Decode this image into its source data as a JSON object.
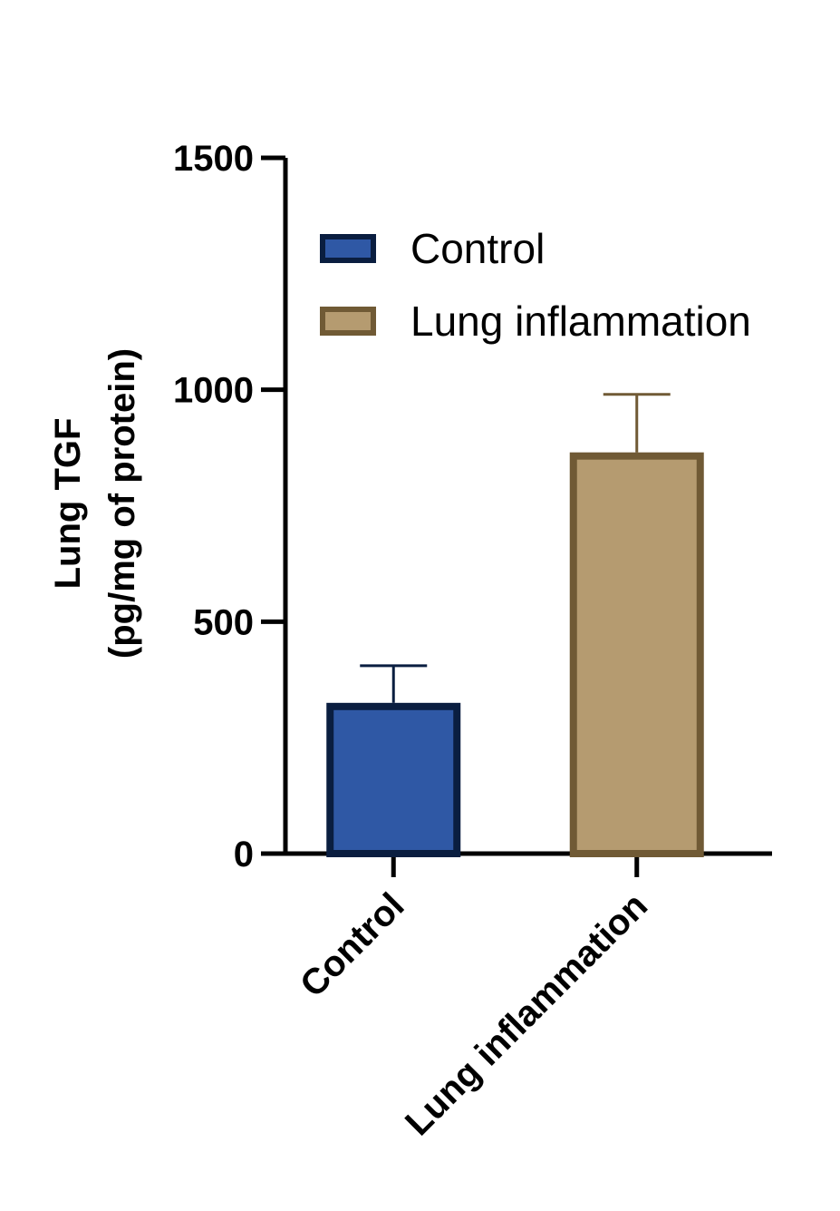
{
  "chart_data": {
    "type": "bar",
    "title": "",
    "ylabel": [
      "Lung TGF",
      "(pg/mg of protein)"
    ],
    "xlabel": "",
    "ylim": [
      0,
      1500
    ],
    "yticks": [
      0,
      500,
      1000,
      1500
    ],
    "ytick_labels": [
      "0",
      "500",
      "1000",
      "1500"
    ],
    "categories": [
      "Control",
      "Lung inflammation"
    ],
    "values": [
      325,
      865
    ],
    "error_upper": [
      405,
      990
    ],
    "legend": {
      "position": "top-right",
      "entries": [
        "Control",
        "Lung inflammation"
      ]
    },
    "grid": false,
    "colors": {
      "fills": [
        "#2F58A5",
        "#B59B70"
      ],
      "edges": [
        "#0A1E40",
        "#705A35"
      ],
      "axis": "#000000"
    }
  }
}
